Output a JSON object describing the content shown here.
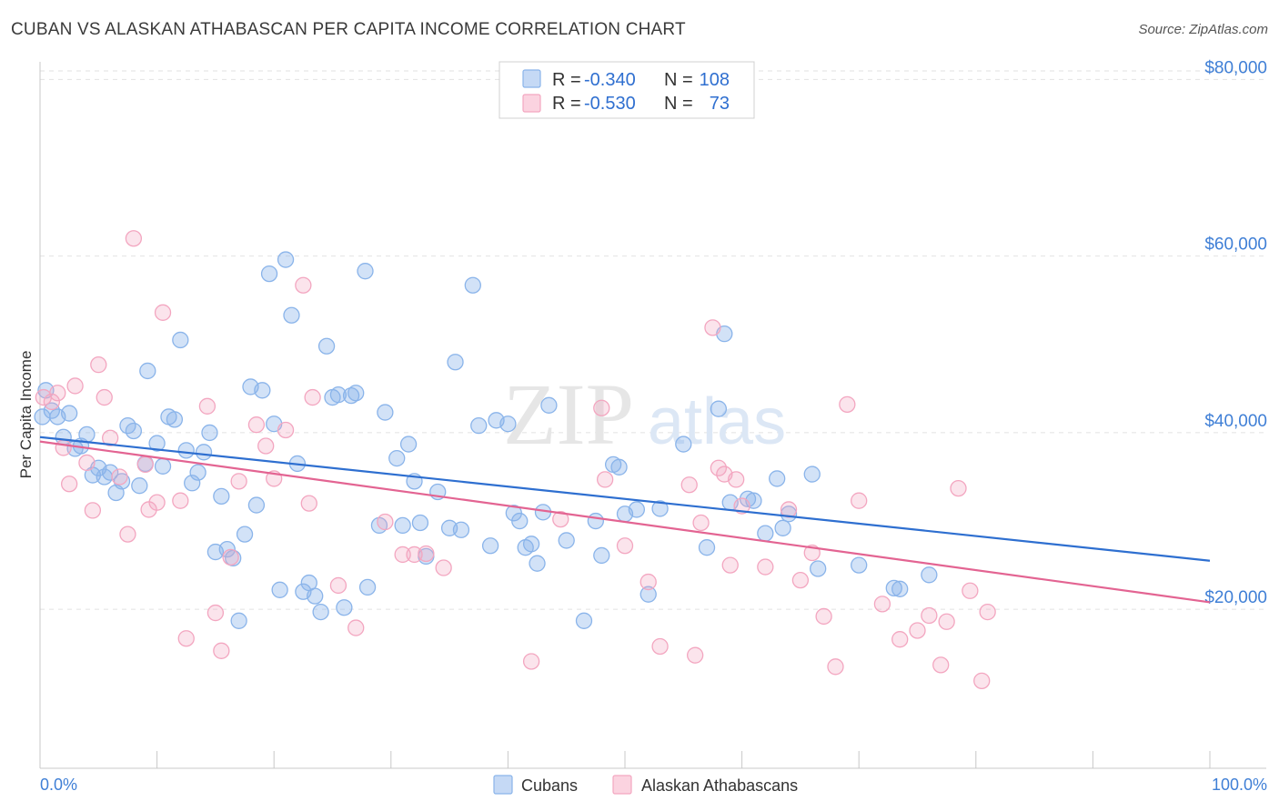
{
  "title": "CUBAN VS ALASKAN ATHABASCAN PER CAPITA INCOME CORRELATION CHART",
  "source": "Source: ZipAtlas.com",
  "watermark": {
    "zip": "ZIP",
    "atlas": "atlas"
  },
  "legend": {
    "rows": [
      {
        "r_label": "R =",
        "r_value": "-0.340",
        "n_label": "N =",
        "n_value": "108",
        "color": "#8ab4ea"
      },
      {
        "r_label": "R =",
        "r_value": "-0.530",
        "n_label": "N =",
        "n_value": "73",
        "color": "#f3a6c0"
      }
    ]
  },
  "bottom_legend": {
    "series1": "Cubans",
    "series2": "Alaskan Athabascans"
  },
  "chart_data": {
    "type": "scatter",
    "title": "CUBAN VS ALASKAN ATHABASCAN PER CAPITA INCOME CORRELATION CHART",
    "xlabel": "",
    "ylabel": "Per Capita Income",
    "xlim": [
      0,
      100
    ],
    "ylim": [
      2000,
      82000
    ],
    "x_tick_labels": [
      "0.0%",
      "100.0%"
    ],
    "y_ticks": [
      20000,
      40000,
      60000,
      80000
    ],
    "y_tick_labels": [
      "$20,000",
      "$40,000",
      "$60,000",
      "$80,000"
    ],
    "grid": true,
    "series": [
      {
        "name": "Cubans",
        "color": "#8ab4ea",
        "line_color": "#2e6fd0",
        "trend": [
          [
            0,
            39500
          ],
          [
            100,
            25500
          ]
        ],
        "points": [
          [
            0.5,
            44800
          ],
          [
            1,
            42500
          ],
          [
            1.5,
            41800
          ],
          [
            2,
            39500
          ],
          [
            2.5,
            42200
          ],
          [
            3,
            38200
          ],
          [
            3.5,
            38500
          ],
          [
            4,
            39800
          ],
          [
            4.5,
            35200
          ],
          [
            5,
            36000
          ],
          [
            5.5,
            35000
          ],
          [
            6,
            35500
          ],
          [
            6.5,
            33200
          ],
          [
            7,
            34500
          ],
          [
            7.5,
            40800
          ],
          [
            8,
            40200
          ],
          [
            8.5,
            34000
          ],
          [
            9,
            36500
          ],
          [
            9.2,
            47000
          ],
          [
            10,
            38800
          ],
          [
            10.5,
            36200
          ],
          [
            11,
            41800
          ],
          [
            11.5,
            41500
          ],
          [
            12,
            50500
          ],
          [
            12.5,
            38000
          ],
          [
            13,
            34300
          ],
          [
            13.5,
            35500
          ],
          [
            14,
            37800
          ],
          [
            14.5,
            40000
          ],
          [
            15,
            26500
          ],
          [
            15.5,
            32800
          ],
          [
            16,
            26800
          ],
          [
            16.5,
            25800
          ],
          [
            17,
            18700
          ],
          [
            17.5,
            28500
          ],
          [
            18,
            45200
          ],
          [
            18.5,
            31800
          ],
          [
            19,
            44800
          ],
          [
            19.6,
            58000
          ],
          [
            20,
            41000
          ],
          [
            20.5,
            22200
          ],
          [
            21,
            59600
          ],
          [
            21.5,
            53300
          ],
          [
            22,
            36500
          ],
          [
            22.5,
            22000
          ],
          [
            23,
            23000
          ],
          [
            23.5,
            21500
          ],
          [
            24,
            19700
          ],
          [
            24.5,
            49800
          ],
          [
            25,
            44000
          ],
          [
            25.5,
            44300
          ],
          [
            26,
            20200
          ],
          [
            26.6,
            44200
          ],
          [
            27,
            44500
          ],
          [
            27.8,
            58300
          ],
          [
            28,
            22500
          ],
          [
            29,
            29500
          ],
          [
            29.5,
            42300
          ],
          [
            30.5,
            37100
          ],
          [
            31,
            29500
          ],
          [
            31.5,
            38700
          ],
          [
            32,
            34500
          ],
          [
            32.5,
            29800
          ],
          [
            33,
            26000
          ],
          [
            34,
            33300
          ],
          [
            35,
            29200
          ],
          [
            35.5,
            48000
          ],
          [
            36,
            29000
          ],
          [
            37,
            56700
          ],
          [
            37.5,
            40800
          ],
          [
            38.5,
            27200
          ],
          [
            39,
            41400
          ],
          [
            40,
            41000
          ],
          [
            40.5,
            30900
          ],
          [
            41,
            30000
          ],
          [
            41.5,
            27000
          ],
          [
            42,
            27400
          ],
          [
            42.5,
            25200
          ],
          [
            43,
            31000
          ],
          [
            43.5,
            43100
          ],
          [
            45,
            27800
          ],
          [
            46.5,
            18700
          ],
          [
            47.5,
            30000
          ],
          [
            48,
            26100
          ],
          [
            49,
            36400
          ],
          [
            49.5,
            36100
          ],
          [
            50,
            30800
          ],
          [
            51,
            31300
          ],
          [
            52,
            21700
          ],
          [
            53,
            31400
          ],
          [
            55,
            38700
          ],
          [
            57,
            27000
          ],
          [
            58,
            42700
          ],
          [
            58.5,
            51200
          ],
          [
            59,
            32100
          ],
          [
            60.5,
            32500
          ],
          [
            61,
            32300
          ],
          [
            62,
            28600
          ],
          [
            63,
            34800
          ],
          [
            63.5,
            29200
          ],
          [
            64,
            30800
          ],
          [
            66,
            35300
          ],
          [
            66.5,
            24600
          ],
          [
            70,
            25000
          ],
          [
            73,
            22400
          ],
          [
            73.5,
            22300
          ],
          [
            76,
            23900
          ],
          [
            0.2,
            41800
          ]
        ]
      },
      {
        "name": "Alaskan Athabascans",
        "color": "#f3a6c0",
        "line_color": "#e36492",
        "trend": [
          [
            0,
            39000
          ],
          [
            100,
            20800
          ]
        ],
        "points": [
          [
            0.3,
            44000
          ],
          [
            1,
            43500
          ],
          [
            1.5,
            44500
          ],
          [
            2,
            38300
          ],
          [
            2.5,
            34200
          ],
          [
            3,
            45300
          ],
          [
            4,
            36600
          ],
          [
            4.5,
            31200
          ],
          [
            5,
            47700
          ],
          [
            5.5,
            44000
          ],
          [
            6,
            39400
          ],
          [
            6.8,
            35000
          ],
          [
            7.5,
            28500
          ],
          [
            8,
            62000
          ],
          [
            9,
            36400
          ],
          [
            9.3,
            31300
          ],
          [
            10,
            32100
          ],
          [
            10.5,
            53600
          ],
          [
            12,
            32300
          ],
          [
            12.5,
            16700
          ],
          [
            14.3,
            43000
          ],
          [
            15,
            19600
          ],
          [
            15.5,
            15300
          ],
          [
            16.3,
            25900
          ],
          [
            17,
            34500
          ],
          [
            18.5,
            40900
          ],
          [
            19.3,
            38500
          ],
          [
            20,
            34800
          ],
          [
            21,
            40300
          ],
          [
            22.5,
            56700
          ],
          [
            23,
            32000
          ],
          [
            23.3,
            44000
          ],
          [
            25.5,
            22700
          ],
          [
            27,
            17900
          ],
          [
            29.5,
            29900
          ],
          [
            31,
            26200
          ],
          [
            32,
            26200
          ],
          [
            33,
            26300
          ],
          [
            34.5,
            24700
          ],
          [
            42,
            14100
          ],
          [
            44.5,
            30200
          ],
          [
            48,
            42800
          ],
          [
            48.3,
            34700
          ],
          [
            50,
            27200
          ],
          [
            52,
            23100
          ],
          [
            53,
            15800
          ],
          [
            55.5,
            34100
          ],
          [
            56,
            14800
          ],
          [
            56.5,
            29800
          ],
          [
            57.5,
            51900
          ],
          [
            58,
            36000
          ],
          [
            58.5,
            35300
          ],
          [
            59,
            25000
          ],
          [
            59.5,
            34700
          ],
          [
            60,
            31700
          ],
          [
            62,
            24800
          ],
          [
            64,
            31300
          ],
          [
            65,
            23300
          ],
          [
            66,
            26400
          ],
          [
            67,
            19200
          ],
          [
            68,
            13500
          ],
          [
            69,
            43200
          ],
          [
            70,
            32300
          ],
          [
            72,
            20600
          ],
          [
            73.5,
            16600
          ],
          [
            75,
            17600
          ],
          [
            76,
            19300
          ],
          [
            77,
            13700
          ],
          [
            77.5,
            18600
          ],
          [
            78.5,
            33700
          ],
          [
            79.5,
            22100
          ],
          [
            80.5,
            11900
          ],
          [
            81,
            19700
          ]
        ]
      }
    ]
  }
}
